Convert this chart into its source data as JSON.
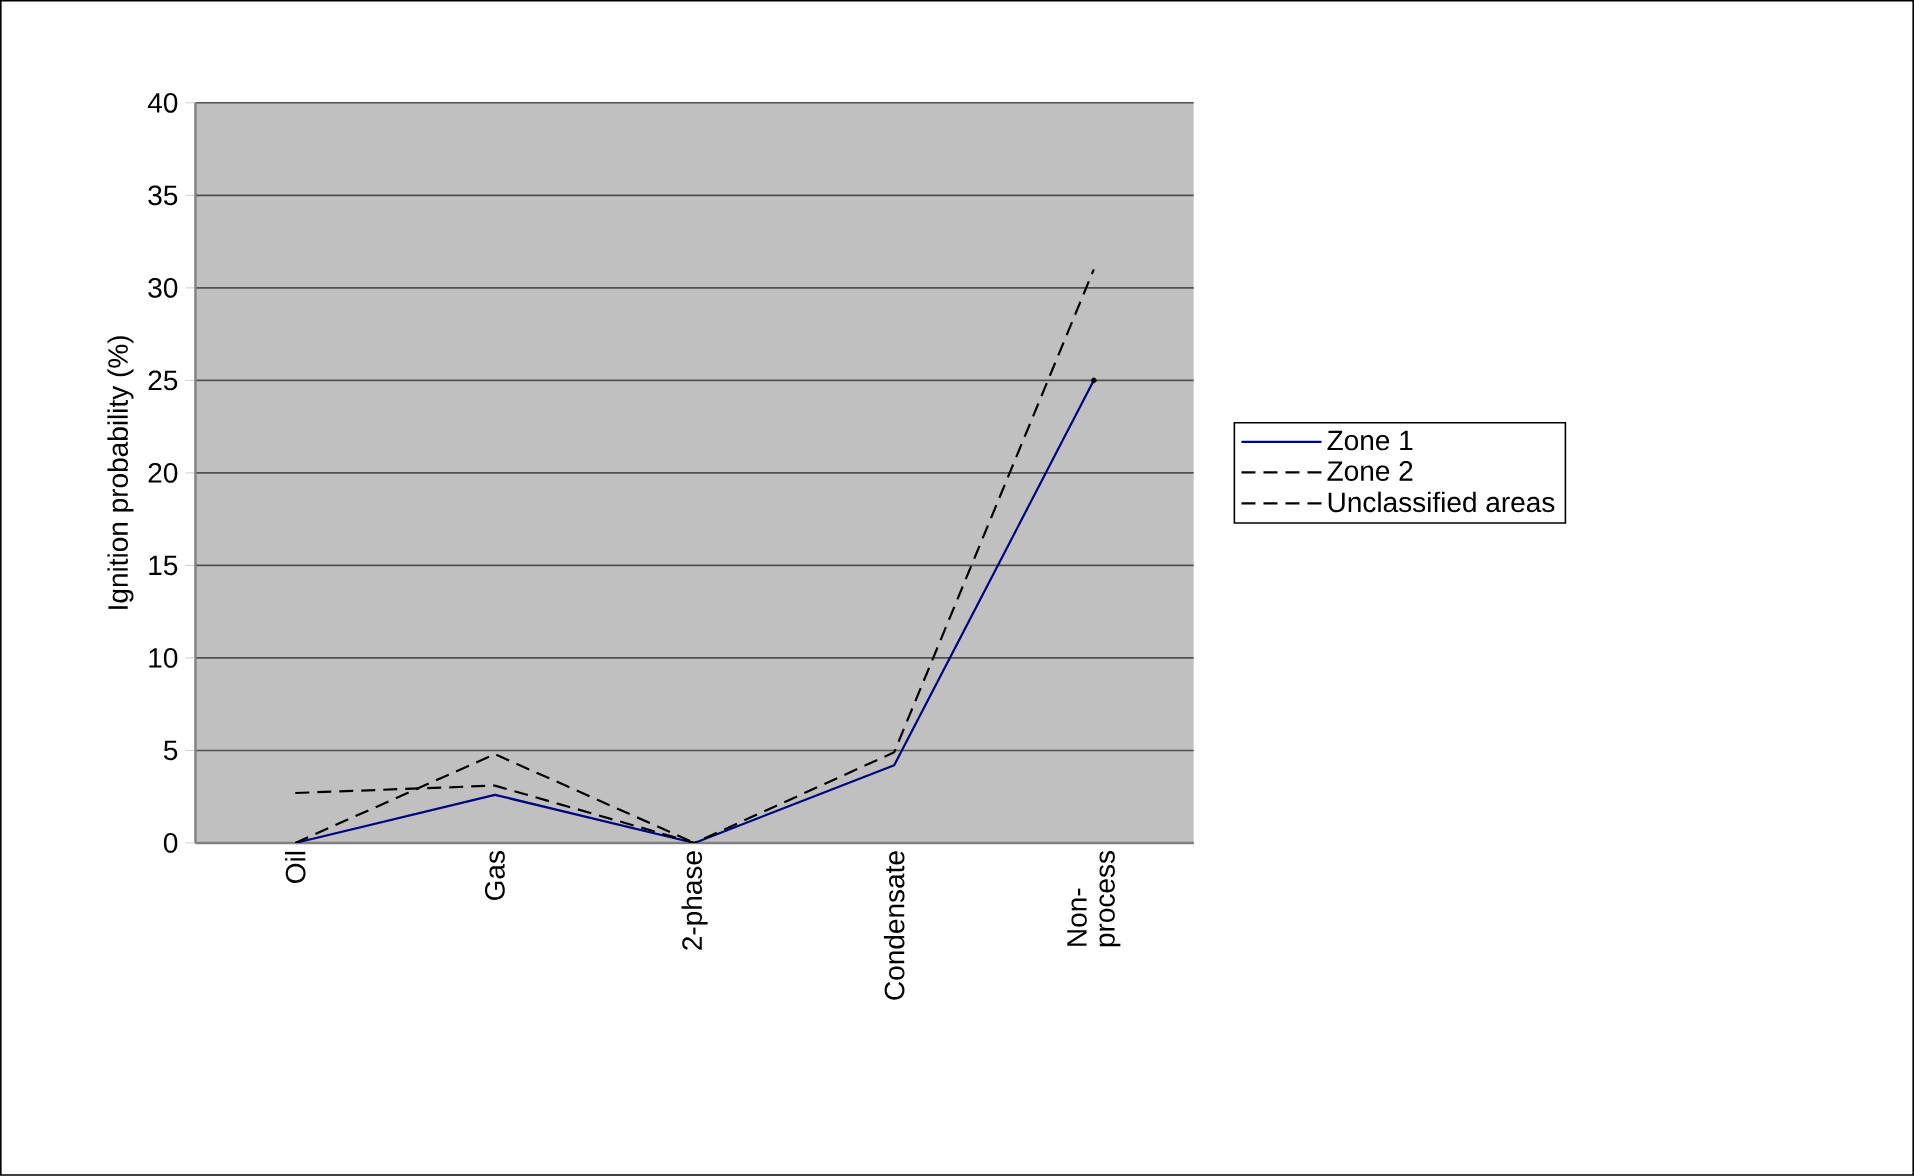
{
  "chart_data": {
    "type": "line",
    "ylabel": "Ignition probability (%)",
    "categories": [
      "Oil",
      "Gas",
      "2-phase",
      "Condensate",
      "Non-\nprocess"
    ],
    "series": [
      {
        "name": "Zone 1",
        "color": "#000080",
        "line_style": "solid",
        "values": [
          0,
          2.6,
          0,
          4.2,
          25
        ]
      },
      {
        "name": "Zone 2",
        "color": "#000000",
        "line_style": "dashed",
        "values": [
          2.7,
          3.1,
          0,
          4.9,
          31
        ]
      },
      {
        "name": "Unclassified areas",
        "color": "#000000",
        "line_style": "dashed",
        "values": [
          0,
          4.8,
          0,
          null,
          25
        ]
      }
    ],
    "ylim": [
      0,
      40
    ],
    "yticks": [
      0,
      5,
      10,
      15,
      20,
      25,
      30,
      35,
      40
    ],
    "grid": "y",
    "legend": "right"
  }
}
